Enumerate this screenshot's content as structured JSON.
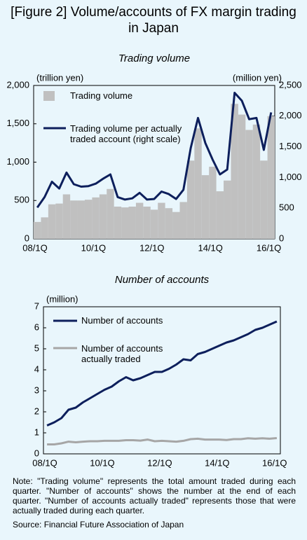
{
  "header": {
    "title": "[Figure 2] Volume/accounts of FX margin trading in Japan"
  },
  "chart_data": [
    {
      "type": "bar",
      "title": "Trading volume",
      "y_label": "(trillion yen)",
      "y2_label": "(million yen)",
      "categories": [
        "08/1Q",
        null,
        null,
        null,
        null,
        null,
        null,
        null,
        "10/1Q",
        null,
        null,
        null,
        null,
        null,
        null,
        null,
        "12/1Q",
        null,
        null,
        null,
        null,
        null,
        null,
        null,
        "14/1Q",
        null,
        null,
        null,
        null,
        null,
        null,
        null,
        "16/1Q"
      ],
      "series": [
        {
          "name": "Trading volume",
          "kind": "bar",
          "color": "#c0c0c0",
          "values": [
            220,
            280,
            450,
            460,
            580,
            500,
            500,
            510,
            540,
            580,
            650,
            420,
            410,
            420,
            470,
            420,
            380,
            470,
            400,
            350,
            480,
            1020,
            1440,
            830,
            940,
            620,
            760,
            1760,
            1620,
            1420,
            1490,
            1020,
            1600
          ]
        },
        {
          "name": "Trading volume per actually traded account (right scale)",
          "kind": "line",
          "axis": "y2",
          "color": "#0d1f5c",
          "values": [
            510,
            680,
            930,
            820,
            1080,
            890,
            850,
            860,
            900,
            980,
            1050,
            680,
            640,
            660,
            750,
            640,
            650,
            770,
            730,
            650,
            800,
            1480,
            1970,
            1560,
            1290,
            1050,
            1130,
            2380,
            2250,
            1950,
            1970,
            1450,
            2060
          ]
        }
      ],
      "ylim": [
        0,
        2000
      ],
      "yticks": [
        0,
        500,
        {
          "value": 1000,
          "label": "1,000"
        },
        {
          "value": 1500,
          "label": "1,500"
        },
        {
          "value": 2000,
          "label": "2,000"
        }
      ],
      "y2lim": [
        0,
        2500
      ],
      "y2ticks": [
        0,
        500,
        {
          "value": 1000,
          "label": "1,000"
        },
        {
          "value": 1500,
          "label": "1,500"
        },
        {
          "value": 2000,
          "label": "2,000"
        },
        {
          "value": 2500,
          "label": "2,500"
        }
      ]
    },
    {
      "type": "line",
      "title": "Number of accounts",
      "y_label": "(million)",
      "categories": [
        "08/1Q",
        null,
        null,
        null,
        null,
        null,
        null,
        null,
        "10/1Q",
        null,
        null,
        null,
        null,
        null,
        null,
        null,
        "12/1Q",
        null,
        null,
        null,
        null,
        null,
        null,
        null,
        "14/1Q",
        null,
        null,
        null,
        null,
        null,
        null,
        null,
        "16/1Q"
      ],
      "series": [
        {
          "name": "Number of accounts",
          "kind": "line",
          "color": "#0d1f5c",
          "values": [
            1.35,
            1.5,
            1.7,
            2.1,
            2.2,
            2.45,
            2.65,
            2.85,
            3.05,
            3.2,
            3.45,
            3.65,
            3.5,
            3.6,
            3.75,
            3.9,
            3.9,
            4.05,
            4.25,
            4.5,
            4.45,
            4.75,
            4.85,
            5.0,
            5.15,
            5.3,
            5.4,
            5.55,
            5.7,
            5.9,
            6.0,
            6.15,
            6.3
          ]
        },
        {
          "name": "Number of accounts actually traded",
          "kind": "line",
          "color": "#a6a6a6",
          "values": [
            0.45,
            0.45,
            0.5,
            0.58,
            0.55,
            0.58,
            0.6,
            0.6,
            0.62,
            0.62,
            0.62,
            0.65,
            0.65,
            0.63,
            0.68,
            0.6,
            0.62,
            0.6,
            0.58,
            0.62,
            0.7,
            0.72,
            0.68,
            0.68,
            0.68,
            0.66,
            0.7,
            0.7,
            0.74,
            0.72,
            0.74,
            0.72,
            0.75
          ]
        }
      ],
      "ylim": [
        0,
        7
      ],
      "yticks": [
        0,
        1,
        2,
        3,
        4,
        5,
        6,
        7
      ]
    }
  ],
  "footer": {
    "note": "Note: \"Trading volume\" represents the total amount traded during each quarter. \"Number of accounts\" shows the number at the end of each quarter. \"Number of accounts actually traded\" represents those that were actually traded during each quarter.",
    "source": "Source: Financial Future Association of Japan"
  }
}
